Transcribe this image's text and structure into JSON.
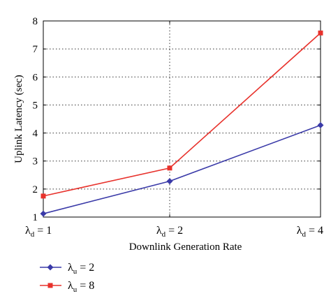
{
  "chart_data": {
    "type": "line",
    "categories": [
      {
        "symbol": "λ",
        "sub": "d",
        "rest": " = 1"
      },
      {
        "symbol": "λ",
        "sub": "d",
        "rest": " = 2"
      },
      {
        "symbol": "λ",
        "sub": "d",
        "rest": " = 4"
      }
    ],
    "xlabel": "Downlink Generation Rate",
    "ylabel": "Uplink Latency (sec)",
    "ylim": [
      1,
      8
    ],
    "yticks": [
      1,
      2,
      3,
      4,
      5,
      6,
      7,
      8
    ],
    "grid": "dotted",
    "legend_position": "bottom-left",
    "series": [
      {
        "label": {
          "symbol": "λ",
          "sub": "u",
          "rest": " = 2"
        },
        "values": [
          1.12,
          2.28,
          4.28
        ],
        "color": "#3a3aa8",
        "marker": "diamond"
      },
      {
        "label": {
          "symbol": "λ",
          "sub": "u",
          "rest": " = 8"
        },
        "values": [
          1.75,
          2.75,
          7.57
        ],
        "color": "#e8322c",
        "marker": "square"
      }
    ]
  }
}
